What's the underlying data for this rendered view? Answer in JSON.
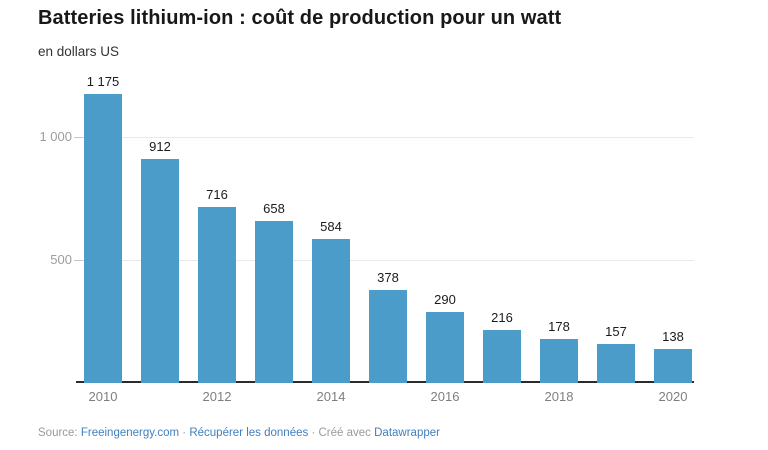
{
  "header": {
    "title": "Batteries lithium-ion : coût de production pour un watt",
    "subtitle": "en dollars US"
  },
  "chart_data": {
    "type": "bar",
    "title": "Batteries lithium-ion : coût de production pour un watt",
    "subtitle": "en dollars US",
    "xlabel": "",
    "ylabel": "en dollars US",
    "categories": [
      "2010",
      "2011",
      "2012",
      "2013",
      "2014",
      "2015",
      "2016",
      "2017",
      "2018",
      "2019",
      "2020"
    ],
    "values": [
      1175,
      912,
      716,
      658,
      584,
      378,
      290,
      216,
      178,
      157,
      138
    ],
    "value_labels": [
      "1 175",
      "912",
      "716",
      "658",
      "584",
      "378",
      "290",
      "216",
      "178",
      "157",
      "138"
    ],
    "x_tick_labels": [
      "2010",
      "2012",
      "2014",
      "2016",
      "2018",
      "2020"
    ],
    "y_ticks": [
      {
        "value": 500,
        "label": "500"
      },
      {
        "value": 1000,
        "label": "1 000"
      }
    ],
    "ylim": [
      0,
      1232
    ],
    "grid": "horizontal",
    "legend": "none"
  },
  "colors": {
    "bar": "#4b9cc9",
    "link": "#3f7fc1",
    "grid": "#e9e9e9",
    "axis": "#2b2b2b",
    "muted_text": "#9a9a9a"
  },
  "footer": {
    "source_label": "Source:",
    "source_link": "Freeingenergy.com",
    "separator": "·",
    "data_link": "Récupérer les données",
    "created_with": "Créé avec",
    "tool_link": "Datawrapper"
  }
}
